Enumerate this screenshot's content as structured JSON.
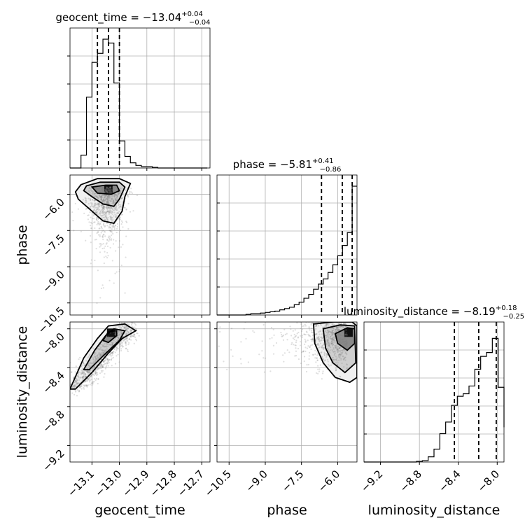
{
  "chart_data": {
    "type": "corner",
    "parameters": [
      "geocent_time",
      "phase",
      "luminosity_distance"
    ],
    "axis_labels": [
      "geocent_time",
      "phase",
      "luminosity_distance"
    ],
    "ranges": {
      "geocent_time": [
        -13.18,
        -12.67
      ],
      "phase": [
        -11.0,
        -5.2
      ],
      "luminosity_distance": [
        -9.37,
        -7.93
      ]
    },
    "ticks": {
      "geocent_time": [
        -13.1,
        -13.0,
        -12.9,
        -12.8,
        -12.7
      ],
      "geocent_time_labels": [
        "−13.1",
        "−13.0",
        "−12.9",
        "−12.8",
        "−12.7"
      ],
      "phase": [
        -10.5,
        -9.0,
        -7.5,
        -6.0
      ],
      "phase_labels": [
        "−10.5",
        "−9.0",
        "−7.5",
        "−6.0"
      ],
      "luminosity_distance": [
        -9.2,
        -8.8,
        -8.4,
        -8.0
      ],
      "luminosity_distance_labels": [
        "−9.2",
        "−8.8",
        "−8.4",
        "−8.0"
      ]
    },
    "titles": [
      {
        "name": "geocent_time",
        "value": "−13.04",
        "plus": "+0.04",
        "minus": "−0.04"
      },
      {
        "name": "phase",
        "value": "−5.81",
        "plus": "+0.41",
        "minus": "−0.86"
      },
      {
        "name": "luminosity_distance",
        "value": "−8.19",
        "plus": "+0.18",
        "minus": "−0.25"
      }
    ],
    "quantiles": {
      "geocent_time": [
        -13.08,
        -13.04,
        -13.0
      ],
      "phase": [
        -6.67,
        -5.81,
        -5.4
      ],
      "luminosity_distance": [
        -8.44,
        -8.19,
        -8.01
      ]
    },
    "histograms": {
      "geocent_time": {
        "edges": [
          -13.18,
          -13.16,
          -13.14,
          -13.12,
          -13.1,
          -13.08,
          -13.06,
          -13.04,
          -13.02,
          -13.0,
          -12.98,
          -12.96,
          -12.94,
          -12.92,
          -12.9,
          -12.88,
          -12.86,
          -12.84,
          -12.82,
          -12.8,
          -12.78,
          -12.76,
          -12.74,
          -12.72,
          -12.7,
          -12.68
        ],
        "counts": [
          0,
          0,
          0.1,
          0.55,
          0.82,
          0.89,
          1.0,
          0.97,
          0.66,
          0.21,
          0.09,
          0.04,
          0.02,
          0.01,
          0.01,
          0.005,
          0,
          0,
          0,
          0,
          0,
          0,
          0,
          0,
          0
        ]
      },
      "phase": {
        "edges": [
          -11.0,
          -10.8,
          -10.6,
          -10.4,
          -10.2,
          -10.0,
          -9.8,
          -9.6,
          -9.4,
          -9.2,
          -9.0,
          -8.8,
          -8.6,
          -8.4,
          -8.2,
          -8.0,
          -7.8,
          -7.6,
          -7.4,
          -7.2,
          -7.0,
          -6.8,
          -6.6,
          -6.4,
          -6.2,
          -6.0,
          -5.8,
          -5.6,
          -5.4,
          -5.2
        ],
        "counts": [
          0,
          0,
          0,
          0,
          0,
          0,
          0.005,
          0.01,
          0.01,
          0.015,
          0.02,
          0.025,
          0.03,
          0.04,
          0.05,
          0.06,
          0.08,
          0.1,
          0.13,
          0.16,
          0.2,
          0.24,
          0.28,
          0.33,
          0.39,
          0.46,
          0.54,
          0.64,
          1.0
        ]
      },
      "luminosity_distance": {
        "edges": [
          -9.37,
          -9.31,
          -9.25,
          -9.19,
          -9.13,
          -9.07,
          -9.01,
          -8.95,
          -8.89,
          -8.83,
          -8.77,
          -8.71,
          -8.65,
          -8.59,
          -8.53,
          -8.47,
          -8.41,
          -8.35,
          -8.29,
          -8.23,
          -8.17,
          -8.11,
          -8.05,
          -7.99,
          -7.93
        ],
        "counts": [
          0,
          0,
          0,
          0,
          0,
          0,
          0,
          0,
          0,
          0.005,
          0.01,
          0.04,
          0.1,
          0.22,
          0.31,
          0.44,
          0.51,
          0.53,
          0.59,
          0.72,
          0.82,
          0.85,
          0.96,
          0.58,
          0.27
        ]
      }
    },
    "pair_2d": [
      {
        "x": "geocent_time",
        "y": "phase",
        "peak": [
          -13.04,
          -5.8
        ],
        "contours": [
          [
            [
              -13.14,
              -5.6
            ],
            [
              -13.08,
              -5.35
            ],
            [
              -13.0,
              -5.35
            ],
            [
              -12.96,
              -5.55
            ],
            [
              -12.98,
              -6.1
            ],
            [
              -12.99,
              -6.7
            ],
            [
              -13.02,
              -7.2
            ],
            [
              -13.06,
              -7.1
            ],
            [
              -13.11,
              -6.6
            ],
            [
              -13.15,
              -6.2
            ],
            [
              -13.16,
              -5.9
            ],
            [
              -13.14,
              -5.6
            ]
          ],
          [
            [
              -13.12,
              -5.65
            ],
            [
              -13.07,
              -5.5
            ],
            [
              -13.0,
              -5.5
            ],
            [
              -12.98,
              -5.7
            ],
            [
              -13.0,
              -6.2
            ],
            [
              -13.02,
              -6.5
            ],
            [
              -13.06,
              -6.4
            ],
            [
              -13.1,
              -6.1
            ],
            [
              -13.13,
              -5.85
            ],
            [
              -13.12,
              -5.65
            ]
          ],
          [
            [
              -13.1,
              -5.7
            ],
            [
              -13.05,
              -5.62
            ],
            [
              -13.01,
              -5.62
            ],
            [
              -13.0,
              -5.85
            ],
            [
              -13.03,
              -6.0
            ],
            [
              -13.08,
              -5.95
            ],
            [
              -13.1,
              -5.7
            ]
          ]
        ]
      },
      {
        "x": "geocent_time",
        "y": "luminosity_distance",
        "peak": [
          -13.03,
          -8.04
        ],
        "contours": [
          [
            [
              -13.18,
              -8.62
            ],
            [
              -13.13,
              -8.3
            ],
            [
              -13.08,
              -8.1
            ],
            [
              -13.04,
              -7.97
            ],
            [
              -12.98,
              -7.95
            ],
            [
              -12.94,
              -8.02
            ],
            [
              -12.99,
              -8.1
            ],
            [
              -13.04,
              -8.25
            ],
            [
              -13.1,
              -8.45
            ],
            [
              -13.16,
              -8.62
            ],
            [
              -13.18,
              -8.62
            ]
          ],
          [
            [
              -13.13,
              -8.42
            ],
            [
              -13.09,
              -8.22
            ],
            [
              -13.05,
              -8.07
            ],
            [
              -13.02,
              -8.0
            ],
            [
              -12.98,
              -8.02
            ],
            [
              -13.0,
              -8.12
            ],
            [
              -13.06,
              -8.28
            ],
            [
              -13.11,
              -8.42
            ],
            [
              -13.13,
              -8.42
            ]
          ],
          [
            [
              -13.06,
              -8.12
            ],
            [
              -13.04,
              -8.03
            ],
            [
              -13.01,
              -8.02
            ],
            [
              -13.01,
              -8.07
            ],
            [
              -13.04,
              -8.14
            ],
            [
              -13.06,
              -8.12
            ]
          ]
        ]
      },
      {
        "x": "phase",
        "y": "luminosity_distance",
        "peak": [
          -5.55,
          -8.04
        ],
        "contours": [
          [
            [
              -7.0,
              -7.95
            ],
            [
              -6.2,
              -7.93
            ],
            [
              -5.4,
              -7.93
            ],
            [
              -5.2,
              -7.97
            ],
            [
              -5.2,
              -8.5
            ],
            [
              -5.5,
              -8.55
            ],
            [
              -6.1,
              -8.5
            ],
            [
              -6.6,
              -8.35
            ],
            [
              -6.95,
              -8.15
            ],
            [
              -7.0,
              -7.95
            ]
          ],
          [
            [
              -6.6,
              -8.0
            ],
            [
              -5.9,
              -7.96
            ],
            [
              -5.3,
              -7.97
            ],
            [
              -5.25,
              -8.35
            ],
            [
              -5.7,
              -8.45
            ],
            [
              -6.2,
              -8.35
            ],
            [
              -6.5,
              -8.2
            ],
            [
              -6.6,
              -8.0
            ]
          ],
          [
            [
              -6.1,
              -8.05
            ],
            [
              -5.6,
              -7.99
            ],
            [
              -5.3,
              -8.0
            ],
            [
              -5.3,
              -8.15
            ],
            [
              -5.6,
              -8.22
            ],
            [
              -6.0,
              -8.15
            ],
            [
              -6.1,
              -8.05
            ]
          ]
        ]
      }
    ],
    "grid": true,
    "colors": {
      "line": "#000000",
      "grid": "#b0b0b0",
      "sample": "#7f7f7f"
    }
  }
}
